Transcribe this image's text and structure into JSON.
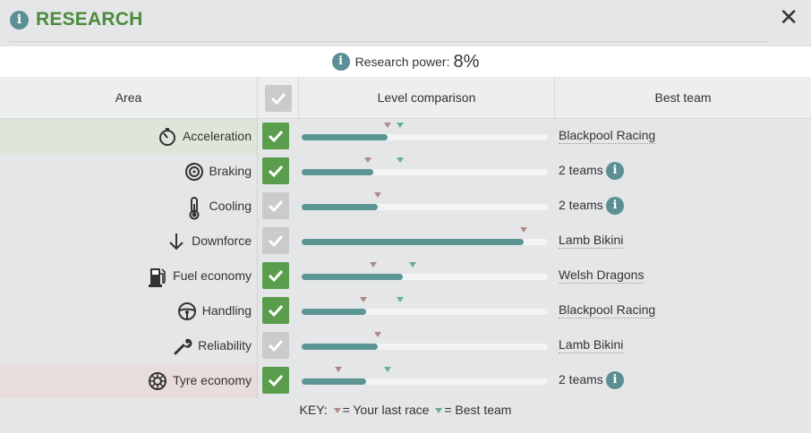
{
  "header": {
    "title": "RESEARCH",
    "close_label": "✕"
  },
  "power": {
    "label": "Research power:",
    "value": "8%"
  },
  "columns": {
    "area": "Area",
    "level": "Level comparison",
    "best": "Best team"
  },
  "rows": [
    {
      "name": "Acceleration",
      "icon": "stopwatch-icon",
      "checked": true,
      "level": 0.35,
      "last_race": 0.35,
      "best": 0.4,
      "team": "Blackpool Racing",
      "team_info": false,
      "highlight": "green"
    },
    {
      "name": "Braking",
      "icon": "brake-disc-icon",
      "checked": true,
      "level": 0.29,
      "last_race": 0.27,
      "best": 0.4,
      "team": "2 teams",
      "team_info": true,
      "highlight": ""
    },
    {
      "name": "Cooling",
      "icon": "thermometer-icon",
      "checked": false,
      "level": 0.31,
      "last_race": 0.31,
      "best": null,
      "team": "2 teams",
      "team_info": true,
      "highlight": ""
    },
    {
      "name": "Downforce",
      "icon": "arrow-down-icon",
      "checked": false,
      "level": 0.9,
      "last_race": 0.9,
      "best": null,
      "team": "Lamb Bikini",
      "team_info": false,
      "highlight": ""
    },
    {
      "name": "Fuel economy",
      "icon": "fuel-pump-icon",
      "checked": true,
      "level": 0.41,
      "last_race": 0.29,
      "best": 0.45,
      "team": "Welsh Dragons",
      "team_info": false,
      "highlight": ""
    },
    {
      "name": "Handling",
      "icon": "steering-wheel-icon",
      "checked": true,
      "level": 0.26,
      "last_race": 0.25,
      "best": 0.4,
      "team": "Blackpool Racing",
      "team_info": false,
      "highlight": ""
    },
    {
      "name": "Reliability",
      "icon": "wrench-icon",
      "checked": false,
      "level": 0.31,
      "last_race": 0.31,
      "best": null,
      "team": "Lamb Bikini",
      "team_info": false,
      "highlight": ""
    },
    {
      "name": "Tyre economy",
      "icon": "tyre-icon",
      "checked": true,
      "level": 0.26,
      "last_race": 0.15,
      "best": 0.35,
      "team": "2 teams",
      "team_info": true,
      "highlight": "red"
    }
  ],
  "key": {
    "prefix": "KEY:",
    "last": "= Your last race",
    "best": "= Best team"
  },
  "colors": {
    "accent_green": "#4d8a3e",
    "check_on": "#5a9d4c",
    "check_off": "#c9cbcc",
    "bar": "#5b9694",
    "last_marker": "#b08a86",
    "best_marker": "#6bb08a"
  }
}
